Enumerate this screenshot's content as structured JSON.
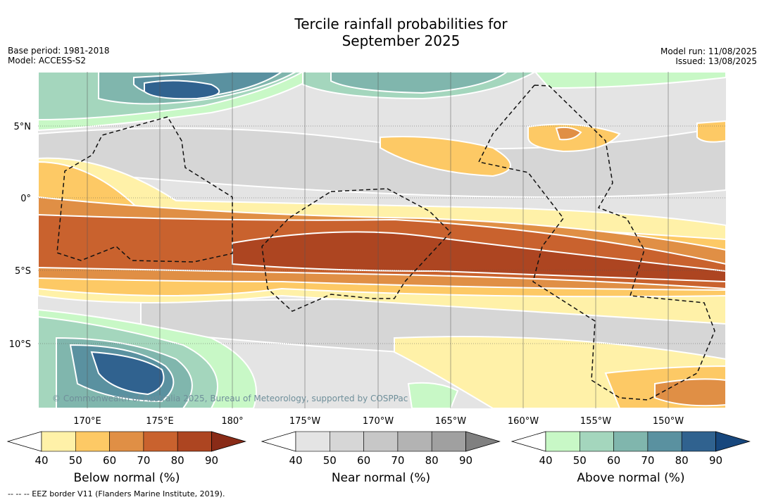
{
  "title": [
    "Tercile rainfall probabilities for",
    "September 2025"
  ],
  "meta_left": [
    "Base period: 1981-2018",
    "Model: ACCESS-S2"
  ],
  "meta_right": [
    "Model run: 11/08/2025",
    "Issued: 13/08/2025"
  ],
  "map": {
    "lon_labels": [
      "170°E",
      "175°E",
      "180°",
      "175°W",
      "170°W",
      "165°W",
      "160°W",
      "155°W",
      "150°W"
    ],
    "lat_labels": [
      "5°N",
      "0°",
      "5°S",
      "10°S"
    ],
    "copyright": "© Commonwealth of Australia 2025, Bureau of Meteorology, supported by COSPPac",
    "colors": {
      "below": [
        "#fff1a8",
        "#fdc965",
        "#e08f45",
        "#c9622e",
        "#ad4521",
        "#892b17"
      ],
      "near": [
        "#e4e4e4",
        "#d6d6d6",
        "#c7c7c7",
        "#b3b3b3",
        "#a0a0a0",
        "#808080"
      ],
      "above": [
        "#c8f8c6",
        "#a4d6bd",
        "#80b6ad",
        "#5a91a0",
        "#30628f",
        "#17477d"
      ]
    }
  },
  "colorbars": [
    {
      "key": "below",
      "label": "Below normal (%)",
      "ticks": [
        "40",
        "50",
        "60",
        "70",
        "80",
        "90"
      ]
    },
    {
      "key": "near",
      "label": "Near normal (%)",
      "ticks": [
        "40",
        "50",
        "60",
        "70",
        "80",
        "90"
      ]
    },
    {
      "key": "above",
      "label": "Above normal (%)",
      "ticks": [
        "40",
        "50",
        "60",
        "70",
        "80",
        "90"
      ]
    }
  ],
  "footnote": "--  --  -- EEZ border V11 (Flanders Marine Institute, 2019)."
}
